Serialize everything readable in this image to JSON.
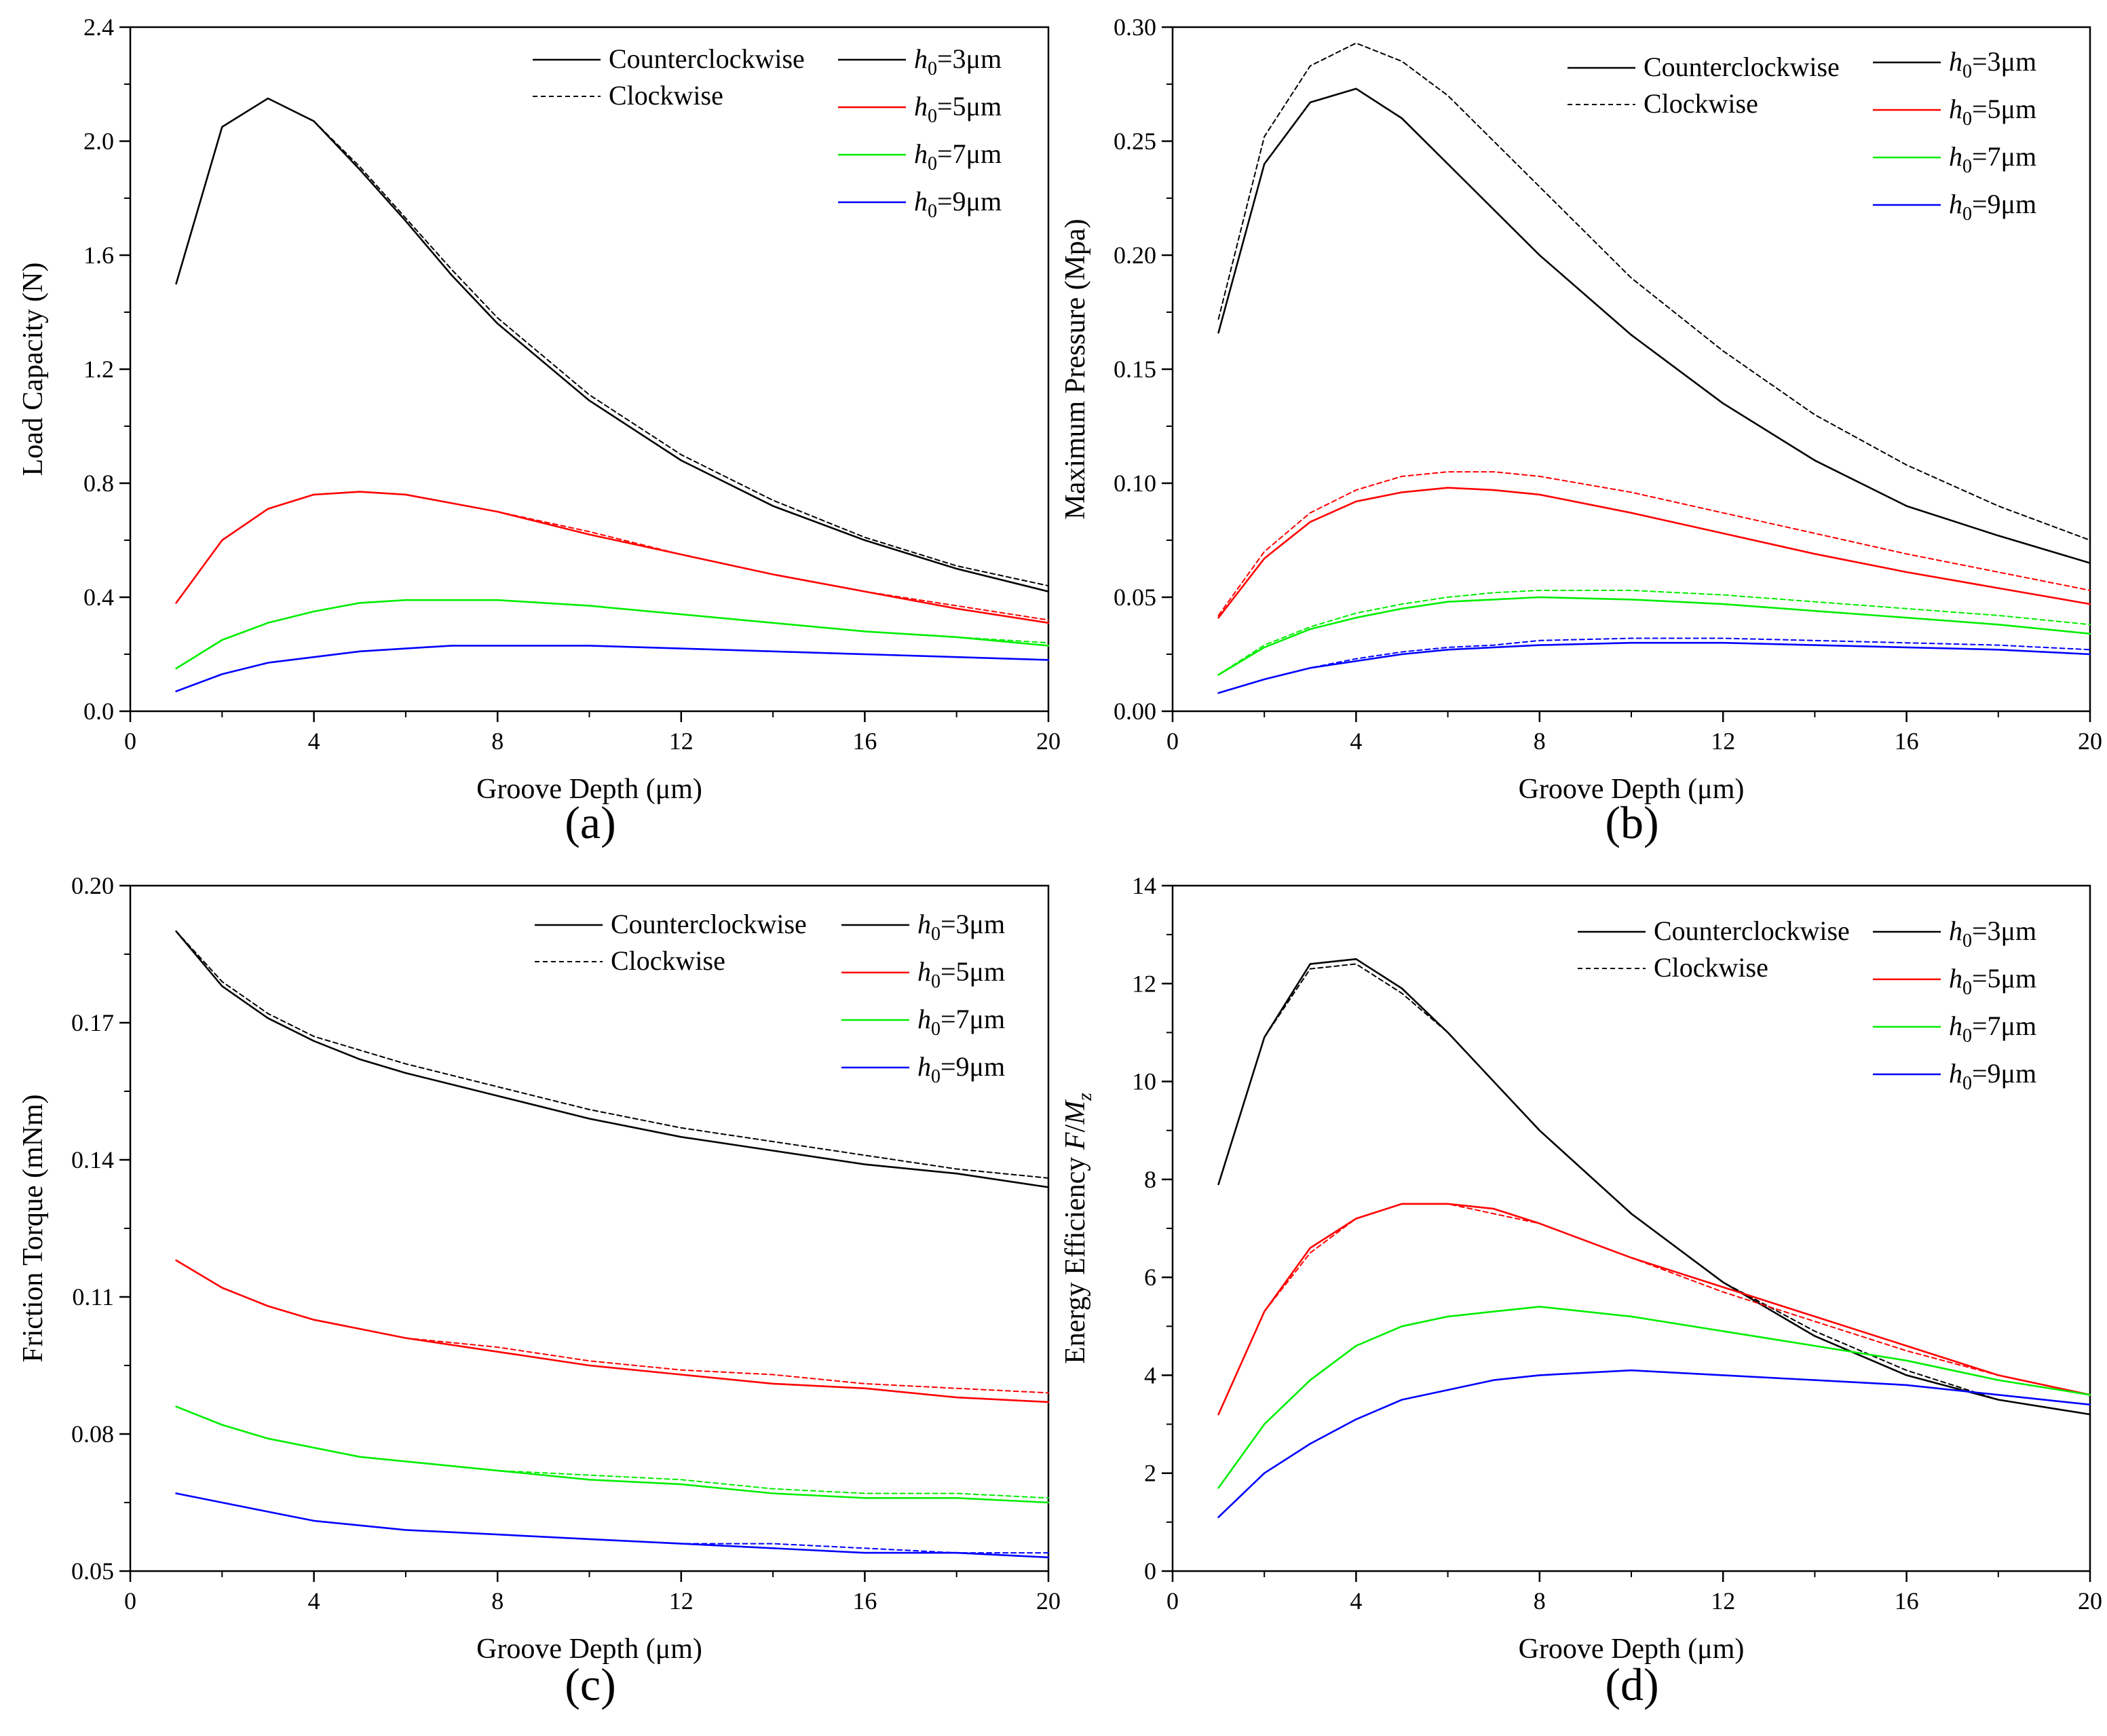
{
  "figure": {
    "panels": [
      "(a)",
      "(b)",
      "(c)",
      "(d)"
    ]
  },
  "legend": {
    "direction_entries": [
      {
        "label": "Counterclockwise",
        "style": "solid"
      },
      {
        "label": "Clockwise",
        "style": "dashed"
      }
    ],
    "h0_entries": [
      {
        "var": "h",
        "sub": "0",
        "rest": "=3μm",
        "color": "#000000"
      },
      {
        "var": "h",
        "sub": "0",
        "rest": "=5μm",
        "color": "#ff0000"
      },
      {
        "var": "h",
        "sub": "0",
        "rest": "=7μm",
        "color": "#00ee00"
      },
      {
        "var": "h",
        "sub": "0",
        "rest": "=9μm",
        "color": "#0000ff"
      }
    ]
  },
  "chart_data": [
    {
      "panel": "(a)",
      "type": "line",
      "xlabel": "Groove Depth (μm)",
      "ylabel": "Load Capacity (N)",
      "xlim": [
        0,
        20
      ],
      "ylim": [
        0,
        2.4
      ],
      "xticks": [
        0,
        4,
        8,
        12,
        16,
        20
      ],
      "yticks": [
        0.0,
        0.4,
        0.8,
        1.2,
        1.6,
        2.0,
        2.4
      ],
      "ytick_labels": [
        "0.0",
        "0.4",
        "0.8",
        "1.2",
        "1.6",
        "2.0",
        "2.4"
      ],
      "x": [
        1,
        2,
        3,
        4,
        5,
        6,
        7,
        8,
        10,
        12,
        14,
        16,
        18,
        20
      ],
      "series": [
        {
          "h0": 3,
          "direction": "Counterclockwise",
          "color": "#000000",
          "dash": false,
          "values": [
            1.5,
            2.05,
            2.15,
            2.07,
            1.9,
            1.72,
            1.53,
            1.36,
            1.09,
            0.88,
            0.72,
            0.6,
            0.5,
            0.42
          ]
        },
        {
          "h0": 3,
          "direction": "Clockwise",
          "color": "#000000",
          "dash": true,
          "values": [
            1.5,
            2.05,
            2.15,
            2.07,
            1.91,
            1.73,
            1.55,
            1.38,
            1.11,
            0.9,
            0.74,
            0.61,
            0.51,
            0.44
          ]
        },
        {
          "h0": 5,
          "direction": "Counterclockwise",
          "color": "#ff0000",
          "dash": false,
          "values": [
            0.38,
            0.6,
            0.71,
            0.76,
            0.77,
            0.76,
            0.73,
            0.7,
            0.62,
            0.55,
            0.48,
            0.42,
            0.36,
            0.31
          ]
        },
        {
          "h0": 5,
          "direction": "Clockwise",
          "color": "#ff0000",
          "dash": true,
          "values": [
            0.38,
            0.6,
            0.71,
            0.76,
            0.77,
            0.76,
            0.73,
            0.7,
            0.63,
            0.55,
            0.48,
            0.42,
            0.37,
            0.32
          ]
        },
        {
          "h0": 7,
          "direction": "Counterclockwise",
          "color": "#00ee00",
          "dash": false,
          "values": [
            0.15,
            0.25,
            0.31,
            0.35,
            0.38,
            0.39,
            0.39,
            0.39,
            0.37,
            0.34,
            0.31,
            0.28,
            0.26,
            0.23
          ]
        },
        {
          "h0": 7,
          "direction": "Clockwise",
          "color": "#00ee00",
          "dash": true,
          "values": [
            0.15,
            0.25,
            0.31,
            0.35,
            0.38,
            0.39,
            0.39,
            0.39,
            0.37,
            0.34,
            0.31,
            0.28,
            0.26,
            0.24
          ]
        },
        {
          "h0": 9,
          "direction": "Counterclockwise",
          "color": "#0000ff",
          "dash": false,
          "values": [
            0.07,
            0.13,
            0.17,
            0.19,
            0.21,
            0.22,
            0.23,
            0.23,
            0.23,
            0.22,
            0.21,
            0.2,
            0.19,
            0.18
          ]
        },
        {
          "h0": 9,
          "direction": "Clockwise",
          "color": "#0000ff",
          "dash": true,
          "values": [
            0.07,
            0.13,
            0.17,
            0.19,
            0.21,
            0.22,
            0.23,
            0.23,
            0.23,
            0.22,
            0.21,
            0.2,
            0.19,
            0.18
          ]
        }
      ]
    },
    {
      "panel": "(b)",
      "type": "line",
      "xlabel": "Groove Depth (μm)",
      "ylabel": "Maximum Pressure (Mpa)",
      "xlim": [
        0,
        20
      ],
      "ylim": [
        0,
        0.3
      ],
      "xticks": [
        0,
        4,
        8,
        12,
        16,
        20
      ],
      "yticks": [
        0.0,
        0.05,
        0.1,
        0.15,
        0.2,
        0.25,
        0.3
      ],
      "ytick_labels": [
        "0.00",
        "0.05",
        "0.10",
        "0.15",
        "0.20",
        "0.25",
        "0.30"
      ],
      "x": [
        1,
        2,
        3,
        4,
        5,
        6,
        7,
        8,
        10,
        12,
        14,
        16,
        18,
        20
      ],
      "series": [
        {
          "h0": 3,
          "direction": "Counterclockwise",
          "color": "#000000",
          "dash": false,
          "values": [
            0.166,
            0.24,
            0.267,
            0.273,
            0.26,
            0.24,
            0.22,
            0.2,
            0.165,
            0.135,
            0.11,
            0.09,
            0.077,
            0.065
          ]
        },
        {
          "h0": 3,
          "direction": "Clockwise",
          "color": "#000000",
          "dash": true,
          "values": [
            0.172,
            0.252,
            0.283,
            0.293,
            0.285,
            0.27,
            0.25,
            0.23,
            0.19,
            0.158,
            0.13,
            0.108,
            0.09,
            0.075
          ]
        },
        {
          "h0": 5,
          "direction": "Counterclockwise",
          "color": "#ff0000",
          "dash": false,
          "values": [
            0.041,
            0.067,
            0.083,
            0.092,
            0.096,
            0.098,
            0.097,
            0.095,
            0.087,
            0.078,
            0.069,
            0.061,
            0.054,
            0.047
          ]
        },
        {
          "h0": 5,
          "direction": "Clockwise",
          "color": "#ff0000",
          "dash": true,
          "values": [
            0.042,
            0.07,
            0.087,
            0.097,
            0.103,
            0.105,
            0.105,
            0.103,
            0.096,
            0.087,
            0.078,
            0.069,
            0.061,
            0.053
          ]
        },
        {
          "h0": 7,
          "direction": "Counterclockwise",
          "color": "#00ee00",
          "dash": false,
          "values": [
            0.016,
            0.028,
            0.036,
            0.041,
            0.045,
            0.048,
            0.049,
            0.05,
            0.049,
            0.047,
            0.044,
            0.041,
            0.038,
            0.034
          ]
        },
        {
          "h0": 7,
          "direction": "Clockwise",
          "color": "#00ee00",
          "dash": true,
          "values": [
            0.016,
            0.029,
            0.037,
            0.043,
            0.047,
            0.05,
            0.052,
            0.053,
            0.053,
            0.051,
            0.048,
            0.045,
            0.042,
            0.038
          ]
        },
        {
          "h0": 9,
          "direction": "Counterclockwise",
          "color": "#0000ff",
          "dash": false,
          "values": [
            0.008,
            0.014,
            0.019,
            0.022,
            0.025,
            0.027,
            0.028,
            0.029,
            0.03,
            0.03,
            0.029,
            0.028,
            0.027,
            0.025
          ]
        },
        {
          "h0": 9,
          "direction": "Clockwise",
          "color": "#0000ff",
          "dash": true,
          "values": [
            0.008,
            0.014,
            0.019,
            0.023,
            0.026,
            0.028,
            0.029,
            0.031,
            0.032,
            0.032,
            0.031,
            0.03,
            0.029,
            0.027
          ]
        }
      ]
    },
    {
      "panel": "(c)",
      "type": "line",
      "xlabel": "Groove Depth (μm)",
      "ylabel": "Friction Torque (mNm)",
      "xlim": [
        0,
        20
      ],
      "ylim": [
        0.05,
        0.2
      ],
      "xticks": [
        0,
        4,
        8,
        12,
        16,
        20
      ],
      "yticks": [
        0.05,
        0.08,
        0.11,
        0.14,
        0.17,
        0.2
      ],
      "ytick_labels": [
        "0.05",
        "0.08",
        "0.11",
        "0.14",
        "0.17",
        "0.20"
      ],
      "x": [
        1,
        2,
        3,
        4,
        5,
        6,
        8,
        10,
        12,
        14,
        16,
        18,
        20
      ],
      "series": [
        {
          "h0": 3,
          "direction": "Counterclockwise",
          "color": "#000000",
          "dash": false,
          "values": [
            0.19,
            0.178,
            0.171,
            0.166,
            0.162,
            0.159,
            0.154,
            0.149,
            0.145,
            0.142,
            0.139,
            0.137,
            0.134
          ]
        },
        {
          "h0": 3,
          "direction": "Clockwise",
          "color": "#000000",
          "dash": true,
          "values": [
            0.19,
            0.179,
            0.172,
            0.167,
            0.164,
            0.161,
            0.156,
            0.151,
            0.147,
            0.144,
            0.141,
            0.138,
            0.136
          ]
        },
        {
          "h0": 5,
          "direction": "Counterclockwise",
          "color": "#ff0000",
          "dash": false,
          "values": [
            0.118,
            0.112,
            0.108,
            0.105,
            0.103,
            0.101,
            0.098,
            0.095,
            0.093,
            0.091,
            0.09,
            0.088,
            0.087
          ]
        },
        {
          "h0": 5,
          "direction": "Clockwise",
          "color": "#ff0000",
          "dash": true,
          "values": [
            0.118,
            0.112,
            0.108,
            0.105,
            0.103,
            0.101,
            0.099,
            0.096,
            0.094,
            0.093,
            0.091,
            0.09,
            0.089
          ]
        },
        {
          "h0": 7,
          "direction": "Counterclockwise",
          "color": "#00ee00",
          "dash": false,
          "values": [
            0.086,
            0.082,
            0.079,
            0.077,
            0.075,
            0.074,
            0.072,
            0.07,
            0.069,
            0.067,
            0.066,
            0.066,
            0.065
          ]
        },
        {
          "h0": 7,
          "direction": "Clockwise",
          "color": "#00ee00",
          "dash": true,
          "values": [
            0.086,
            0.082,
            0.079,
            0.077,
            0.075,
            0.074,
            0.072,
            0.071,
            0.07,
            0.068,
            0.067,
            0.067,
            0.066
          ]
        },
        {
          "h0": 9,
          "direction": "Counterclockwise",
          "color": "#0000ff",
          "dash": false,
          "values": [
            0.067,
            0.065,
            0.063,
            0.061,
            0.06,
            0.059,
            0.058,
            0.057,
            0.056,
            0.055,
            0.054,
            0.054,
            0.053
          ]
        },
        {
          "h0": 9,
          "direction": "Clockwise",
          "color": "#0000ff",
          "dash": true,
          "values": [
            0.067,
            0.065,
            0.063,
            0.061,
            0.06,
            0.059,
            0.058,
            0.057,
            0.056,
            0.056,
            0.055,
            0.054,
            0.054
          ]
        }
      ]
    },
    {
      "panel": "(d)",
      "type": "line",
      "xlabel": "Groove Depth (μm)",
      "ylabel": "Energy Efficiency F/Mz",
      "xlim": [
        0,
        20
      ],
      "ylim": [
        0,
        14
      ],
      "xticks": [
        0,
        4,
        8,
        12,
        16,
        20
      ],
      "yticks": [
        0,
        2,
        4,
        6,
        8,
        10,
        12,
        14
      ],
      "ytick_labels": [
        "0",
        "2",
        "4",
        "6",
        "8",
        "10",
        "12",
        "14"
      ],
      "x": [
        1,
        2,
        3,
        4,
        5,
        6,
        7,
        8,
        10,
        12,
        14,
        16,
        18,
        20
      ],
      "series": [
        {
          "h0": 3,
          "direction": "Counterclockwise",
          "color": "#000000",
          "dash": false,
          "values": [
            7.9,
            10.9,
            12.4,
            12.5,
            11.9,
            11.0,
            10.0,
            9.0,
            7.3,
            5.9,
            4.8,
            4.0,
            3.5,
            3.2
          ]
        },
        {
          "h0": 3,
          "direction": "Clockwise",
          "color": "#000000",
          "dash": true,
          "values": [
            7.9,
            10.9,
            12.3,
            12.4,
            11.8,
            11.0,
            10.0,
            9.0,
            7.3,
            5.9,
            4.9,
            4.1,
            3.5,
            3.2
          ]
        },
        {
          "h0": 5,
          "direction": "Counterclockwise",
          "color": "#ff0000",
          "dash": false,
          "values": [
            3.2,
            5.3,
            6.6,
            7.2,
            7.5,
            7.5,
            7.4,
            7.1,
            6.4,
            5.8,
            5.2,
            4.6,
            4.0,
            3.6
          ]
        },
        {
          "h0": 5,
          "direction": "Clockwise",
          "color": "#ff0000",
          "dash": true,
          "values": [
            3.2,
            5.3,
            6.5,
            7.2,
            7.5,
            7.5,
            7.3,
            7.1,
            6.4,
            5.7,
            5.1,
            4.5,
            4.0,
            3.6
          ]
        },
        {
          "h0": 7,
          "direction": "Counterclockwise",
          "color": "#00ee00",
          "dash": false,
          "values": [
            1.7,
            3.0,
            3.9,
            4.6,
            5.0,
            5.2,
            5.3,
            5.4,
            5.2,
            4.9,
            4.6,
            4.3,
            3.9,
            3.6
          ]
        },
        {
          "h0": 7,
          "direction": "Clockwise",
          "color": "#00ee00",
          "dash": true,
          "values": [
            1.7,
            3.0,
            3.9,
            4.6,
            5.0,
            5.2,
            5.3,
            5.4,
            5.2,
            4.9,
            4.6,
            4.3,
            3.9,
            3.6
          ]
        },
        {
          "h0": 9,
          "direction": "Counterclockwise",
          "color": "#0000ff",
          "dash": false,
          "values": [
            1.1,
            2.0,
            2.6,
            3.1,
            3.5,
            3.7,
            3.9,
            4.0,
            4.1,
            4.0,
            3.9,
            3.8,
            3.6,
            3.4
          ]
        },
        {
          "h0": 9,
          "direction": "Clockwise",
          "color": "#0000ff",
          "dash": true,
          "values": [
            1.1,
            2.0,
            2.6,
            3.1,
            3.5,
            3.7,
            3.9,
            4.0,
            4.1,
            4.0,
            3.9,
            3.8,
            3.6,
            3.4
          ]
        }
      ]
    }
  ]
}
